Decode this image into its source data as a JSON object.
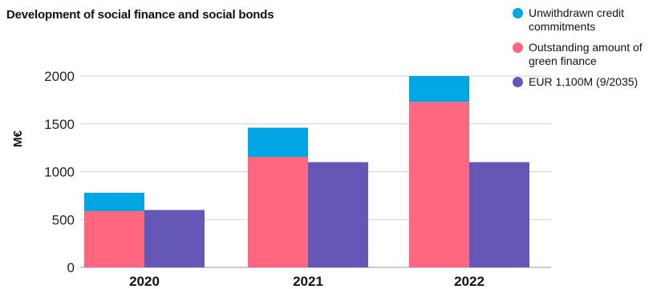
{
  "chart_data": {
    "type": "bar",
    "title": "Development of social finance and social bonds",
    "ylabel": "M€",
    "xlabel": "",
    "ylim": [
      0,
      2000
    ],
    "yticks": [
      0,
      500,
      1000,
      1500,
      2000
    ],
    "grid": true,
    "legend_position": "top-right",
    "categories": [
      "2020",
      "2021",
      "2022"
    ],
    "stacked_bar": {
      "segments": [
        {
          "name": "Outstanding amount of green finance",
          "color": "#ff6680",
          "values": [
            590,
            1155,
            1730
          ]
        },
        {
          "name": "Unwithdrawn credit commitments",
          "color": "#00a5e3",
          "values": [
            190,
            305,
            270
          ]
        }
      ]
    },
    "side_bar": {
      "name": "EUR 1,100M (9/2035)",
      "color": "#6557b6",
      "values": [
        600,
        1100,
        1100
      ]
    }
  },
  "legend": [
    {
      "label": "Unwithdrawn credit commitments",
      "color": "#00a5e3"
    },
    {
      "label": "Outstanding amount of green finance",
      "color": "#ff6680"
    },
    {
      "label": "EUR 1,100M (9/2035)",
      "color": "#6557b6"
    }
  ]
}
